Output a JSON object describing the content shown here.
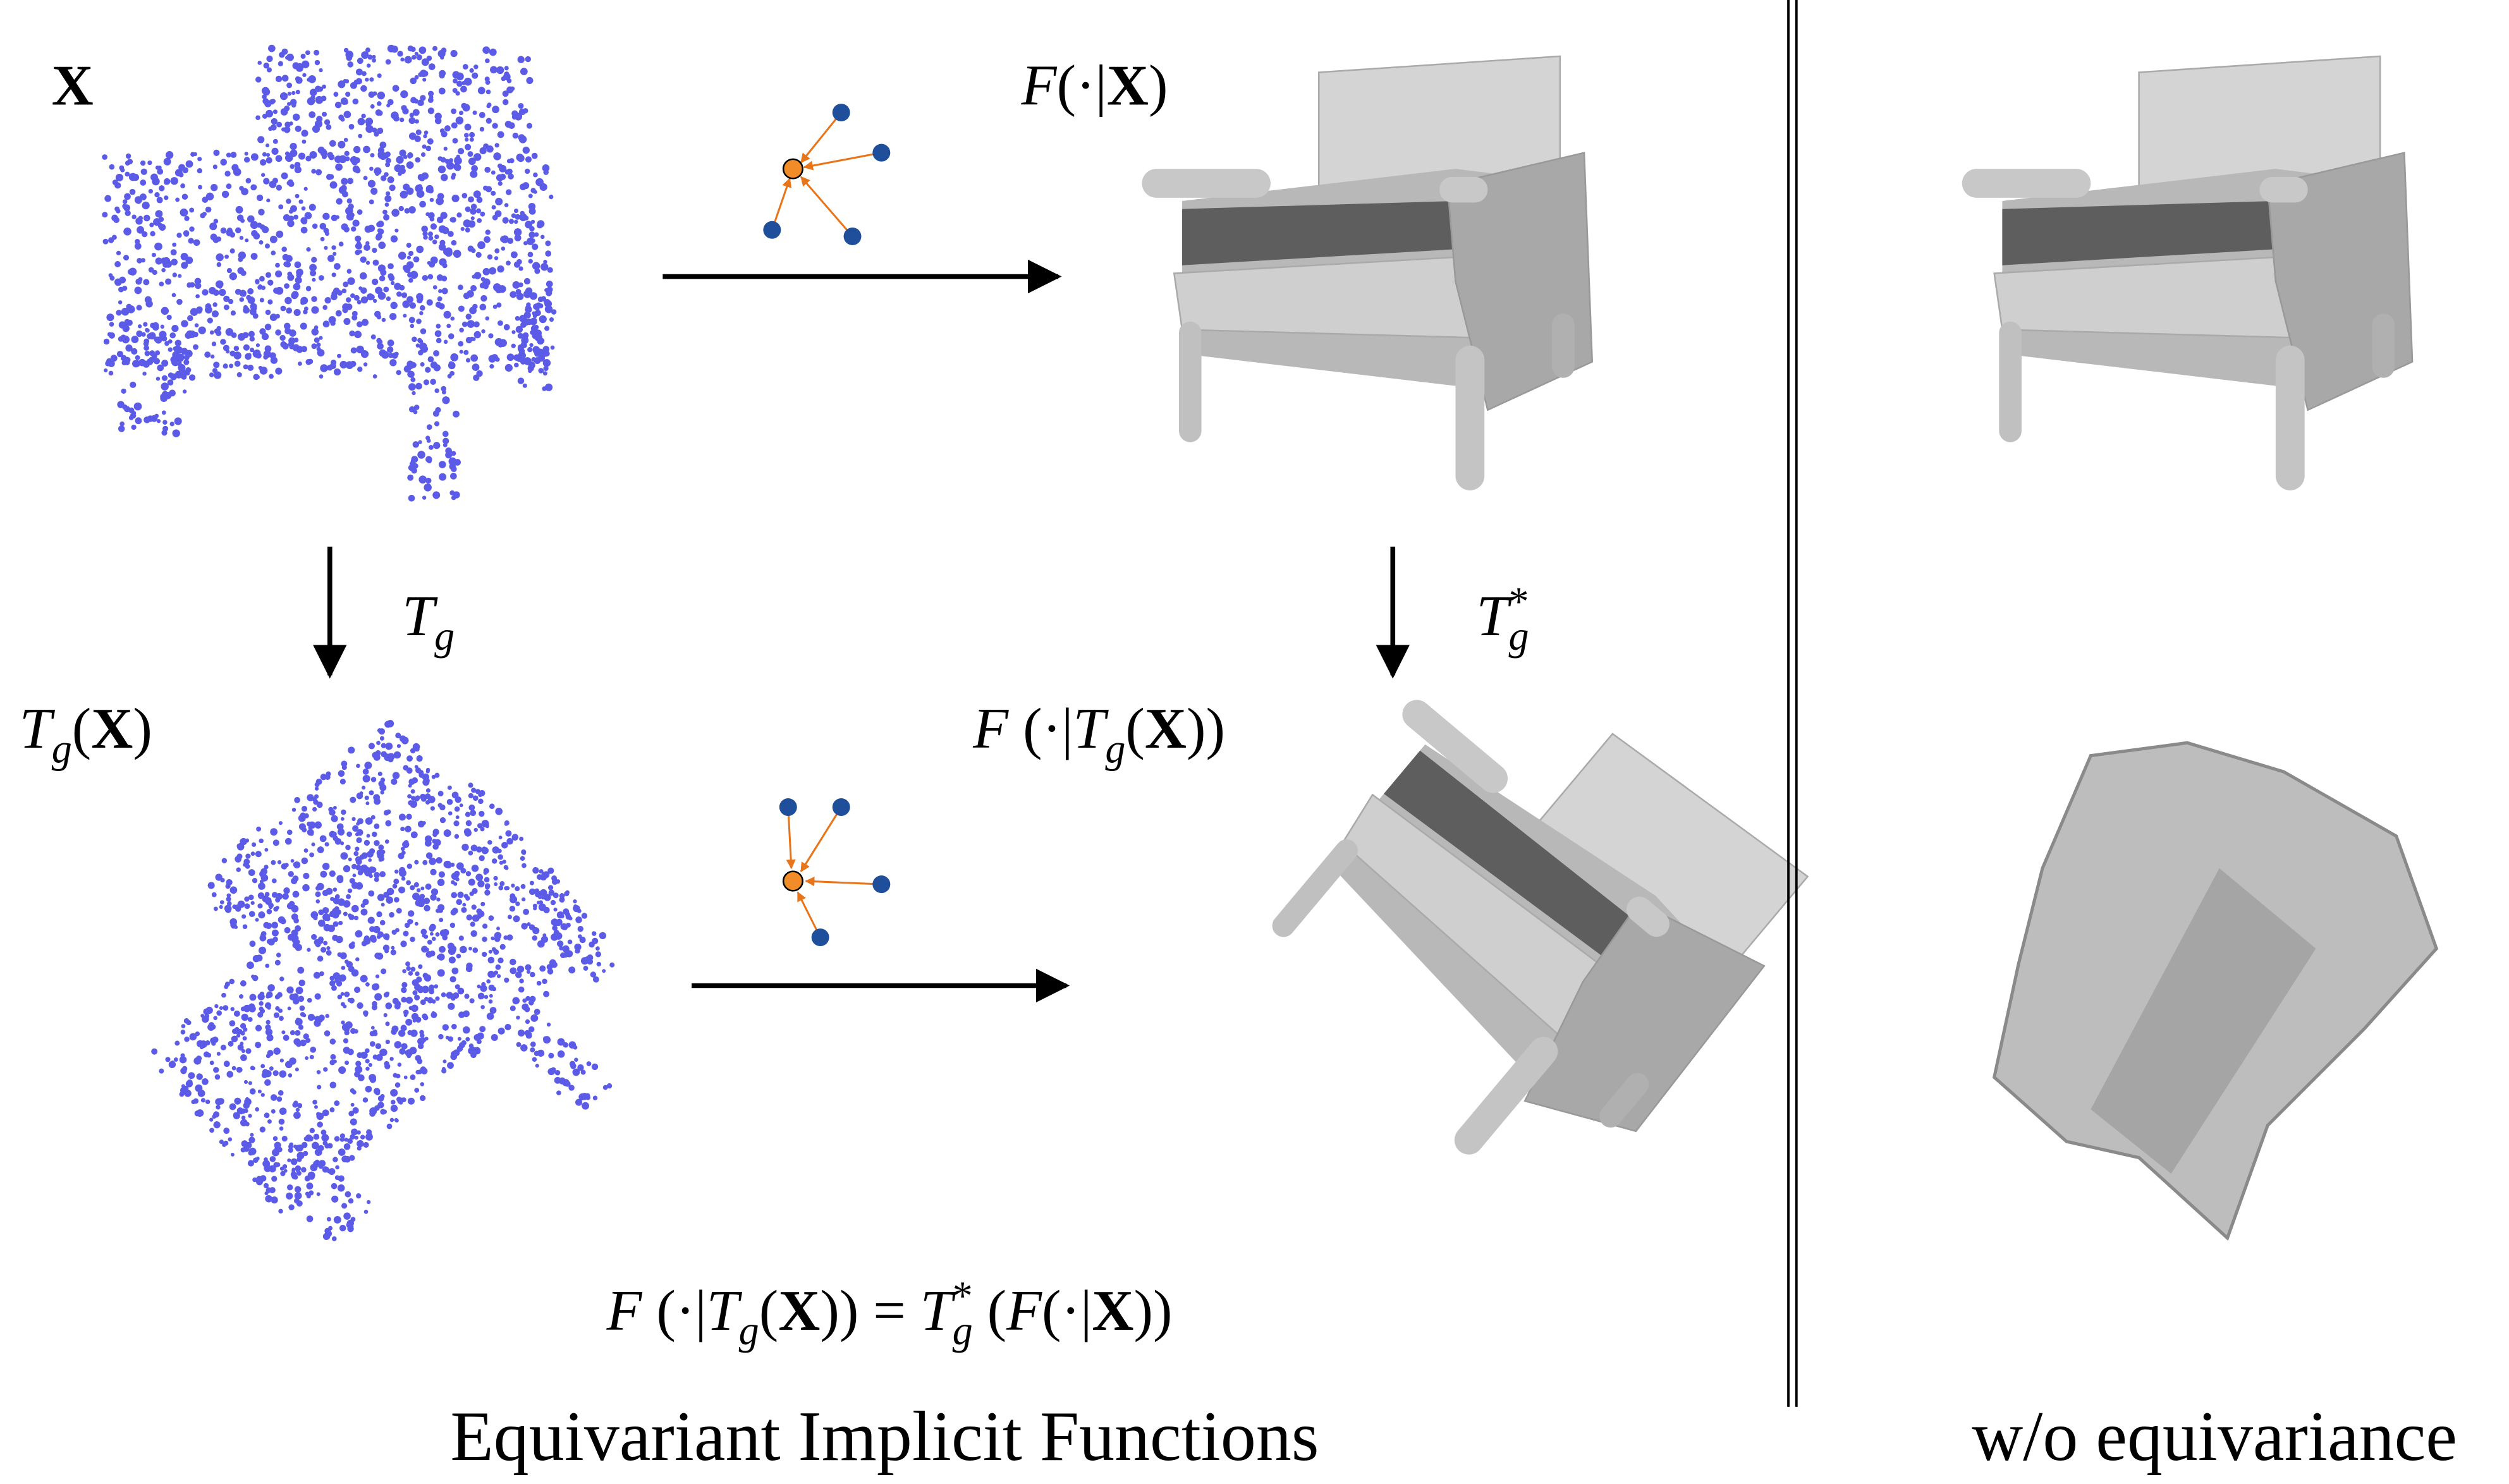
{
  "labels": {
    "x": [
      {
        "text": "X",
        "style": "bf"
      }
    ],
    "f_x": [
      {
        "text": "F",
        "style": "it"
      },
      {
        "text": "(·|",
        "style": "rm"
      },
      {
        "text": "X",
        "style": "bf"
      },
      {
        "text": ")",
        "style": "rm"
      }
    ],
    "t_g": [
      {
        "text": "T",
        "style": "it"
      },
      {
        "text": "g",
        "style": "sub"
      }
    ],
    "t_g_star": [
      {
        "text": "T",
        "style": "it"
      },
      {
        "text": "g",
        "style": "sub"
      },
      {
        "text": "*",
        "style": "sup"
      }
    ],
    "t_g_x": [
      {
        "text": "T",
        "style": "it"
      },
      {
        "text": "g",
        "style": "sub"
      },
      {
        "text": "(",
        "style": "rm"
      },
      {
        "text": "X",
        "style": "bf"
      },
      {
        "text": ")",
        "style": "rm"
      }
    ],
    "f_t_g_x": [
      {
        "text": "F",
        "style": "it"
      },
      {
        "text": " (·|",
        "style": "rm"
      },
      {
        "text": "T",
        "style": "it"
      },
      {
        "text": "g",
        "style": "sub"
      },
      {
        "text": "(",
        "style": "rm"
      },
      {
        "text": "X",
        "style": "bf"
      },
      {
        "text": "))",
        "style": "rm"
      }
    ],
    "equation": [
      {
        "text": "F",
        "style": "it"
      },
      {
        "text": " (·|",
        "style": "rm"
      },
      {
        "text": "T",
        "style": "it"
      },
      {
        "text": "g",
        "style": "sub"
      },
      {
        "text": "(",
        "style": "rm"
      },
      {
        "text": "X",
        "style": "bf"
      },
      {
        "text": ")) = ",
        "style": "rm"
      },
      {
        "text": "T",
        "style": "it"
      },
      {
        "text": "g",
        "style": "sub"
      },
      {
        "text": "*",
        "style": "sup"
      },
      {
        "text": " (",
        "style": "rm"
      },
      {
        "text": "F",
        "style": "it"
      },
      {
        "text": "(·|",
        "style": "rm"
      },
      {
        "text": "X",
        "style": "bf"
      },
      {
        "text": "))",
        "style": "rm"
      }
    ]
  },
  "captions": {
    "main": "Equivariant Implicit Functions",
    "ablation": "w/o equivariance"
  }
}
